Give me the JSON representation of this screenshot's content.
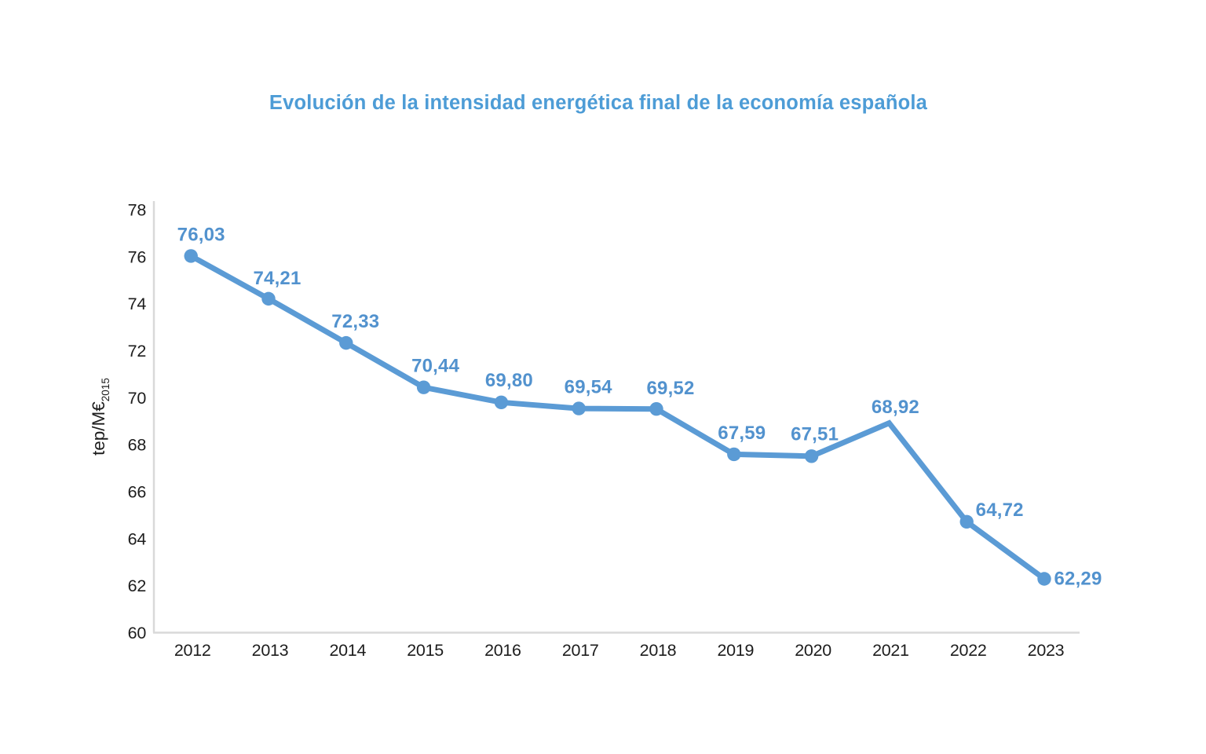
{
  "title": "Evolución de la intensidad energética final de la economía española",
  "chart_data": {
    "type": "line",
    "title": "Evolución de la intensidad energética final de la economía española",
    "x": [
      2012,
      2013,
      2014,
      2015,
      2016,
      2017,
      2018,
      2019,
      2020,
      2021,
      2022,
      2023
    ],
    "values": [
      76.03,
      74.21,
      72.33,
      70.44,
      69.8,
      69.54,
      69.52,
      67.59,
      67.51,
      68.92,
      64.72,
      62.29
    ],
    "value_labels": [
      "76,03",
      "74,21",
      "72,33",
      "70,44",
      "69,80",
      "69,54",
      "69,52",
      "67,59",
      "67,51",
      "68,92",
      "64,72",
      "62,29"
    ],
    "xlabel": "",
    "ylabel": "tep/M€",
    "ylabel_subscript": "2015",
    "ylim": [
      60,
      78
    ],
    "ytick_step": 2,
    "yticks": [
      60,
      62,
      64,
      66,
      68,
      70,
      72,
      74,
      76,
      78
    ],
    "grid": false,
    "legend": false,
    "markers": true,
    "markers_hidden_x": [
      2021
    ],
    "colors": {
      "line": "#5B9BD5",
      "marker": "#5B9BD5",
      "data_label": "#5292CE",
      "title": "#4D9CD6",
      "axis_line": "#D9D9D9",
      "tick_label": "#1D1D1D"
    }
  }
}
